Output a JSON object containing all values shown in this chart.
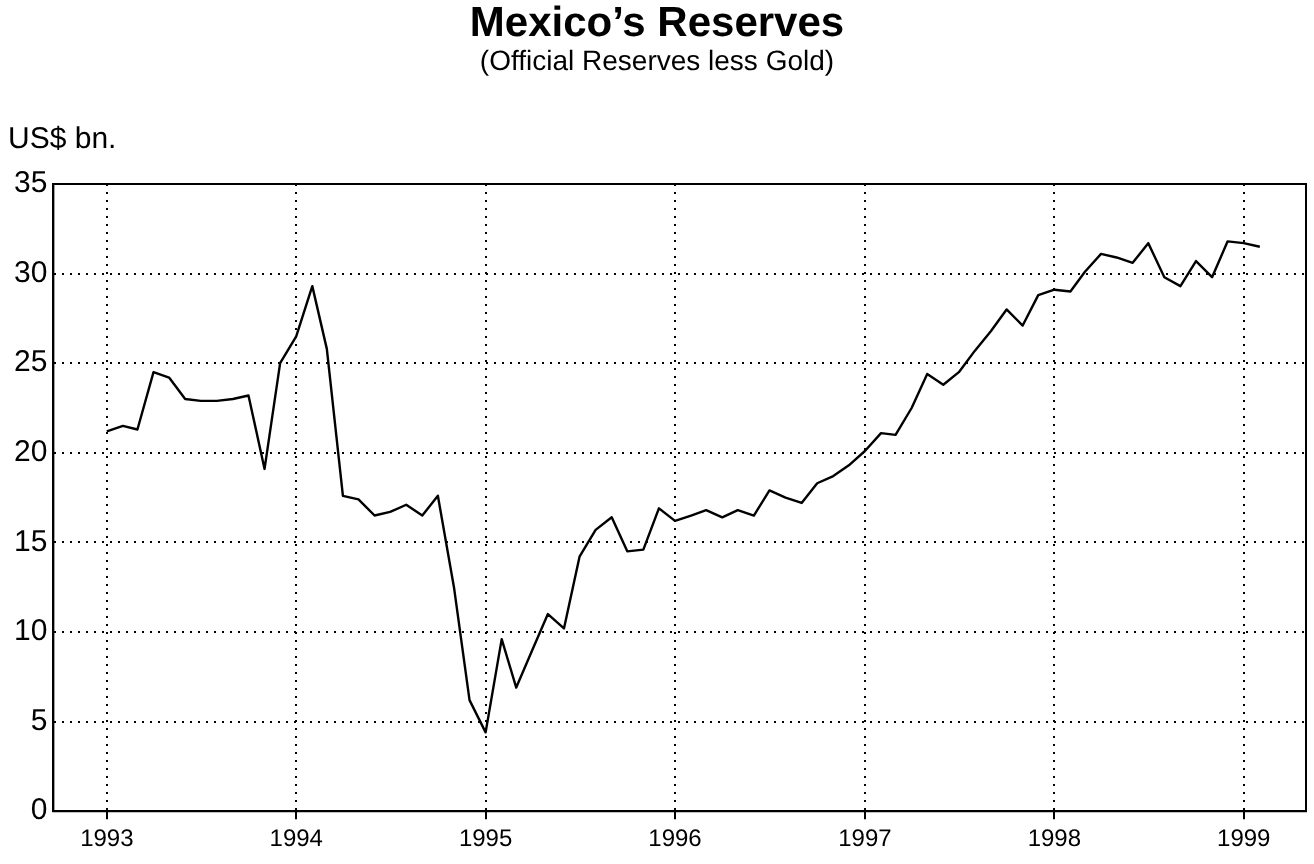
{
  "chart_data": {
    "type": "line",
    "title": "Mexico’s Reserves",
    "subtitle": "(Official Reserves less Gold)",
    "ylabel": "US$ bn.",
    "x": [
      "1993-01",
      "1993-02",
      "1993-03",
      "1993-04",
      "1993-05",
      "1993-06",
      "1993-07",
      "1993-08",
      "1993-09",
      "1993-10",
      "1993-11",
      "1993-12",
      "1994-01",
      "1994-02",
      "1994-03",
      "1994-04",
      "1994-05",
      "1994-06",
      "1994-07",
      "1994-08",
      "1994-09",
      "1994-10",
      "1994-11",
      "1994-12",
      "1995-01",
      "1995-02",
      "1995-03",
      "1995-04",
      "1995-05",
      "1995-06",
      "1995-07",
      "1995-08",
      "1995-09",
      "1995-10",
      "1995-11",
      "1995-12",
      "1996-01",
      "1996-02",
      "1996-03",
      "1996-04",
      "1996-05",
      "1996-06",
      "1996-07",
      "1996-08",
      "1996-09",
      "1996-10",
      "1996-11",
      "1996-12",
      "1997-01",
      "1997-02",
      "1997-03",
      "1997-04",
      "1997-05",
      "1997-06",
      "1997-07",
      "1997-08",
      "1997-09",
      "1997-10",
      "1997-11",
      "1997-12",
      "1998-01",
      "1998-02",
      "1998-03",
      "1998-04",
      "1998-05",
      "1998-06",
      "1998-07",
      "1998-08",
      "1998-09",
      "1998-10",
      "1998-11",
      "1998-12",
      "1999-01",
      "1999-02"
    ],
    "series": [
      {
        "color": "#000000",
        "values": [
          21.2,
          21.5,
          21.3,
          24.5,
          24.2,
          23.0,
          22.9,
          22.9,
          23.0,
          23.2,
          19.1,
          25.0,
          26.5,
          29.3,
          25.8,
          17.6,
          17.4,
          16.5,
          16.7,
          17.1,
          16.5,
          17.6,
          12.5,
          6.2,
          4.4,
          9.6,
          6.9,
          9.0,
          11.0,
          10.2,
          14.2,
          15.7,
          16.4,
          14.5,
          14.6,
          16.9,
          16.2,
          16.5,
          16.8,
          16.4,
          16.8,
          16.5,
          17.9,
          17.5,
          17.2,
          18.3,
          18.7,
          19.3,
          20.1,
          21.1,
          21.0,
          22.5,
          24.4,
          23.8,
          24.5,
          25.7,
          26.8,
          28.0,
          27.1,
          28.8,
          29.1,
          29.0,
          30.1,
          31.1,
          30.9,
          30.6,
          31.7,
          29.8,
          29.3,
          30.7,
          29.8,
          31.8,
          31.7,
          31.5
        ]
      }
    ],
    "xlim": [
      "1992-09-20",
      "1999-05-01"
    ],
    "xticks": [
      "1993",
      "1994",
      "1995",
      "1996",
      "1997",
      "1998",
      "1999"
    ],
    "ylim": [
      0,
      35
    ],
    "yticks": [
      0,
      5,
      10,
      15,
      20,
      25,
      30,
      35
    ],
    "grid": true,
    "legend": false,
    "marker": "none",
    "line_style": "solid"
  }
}
